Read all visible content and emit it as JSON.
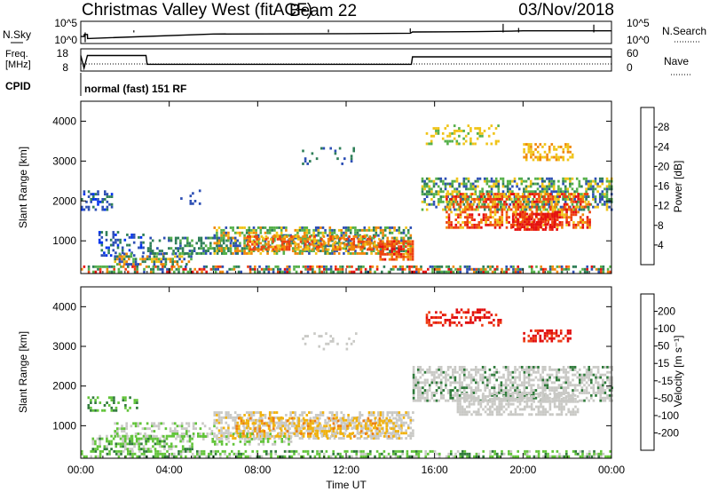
{
  "header": {
    "title": "Christmas Valley West (fitACF)",
    "beam": "Beam 22",
    "date": "03/Nov/2018"
  },
  "strip": {
    "nsky_label": "N.Sky",
    "nsky_ticks": [
      "10^5",
      "10^0"
    ],
    "nsearch_label": "N.Search",
    "nsearch_ticks": [
      "10^5",
      "10^0"
    ],
    "freq_label_1": "Freq.",
    "freq_label_2": "[MHz]",
    "freq_ticks": [
      "18",
      "8"
    ],
    "nave_label": "Nave",
    "nave_ticks": [
      "60",
      "0"
    ],
    "cpid_label": "CPID",
    "cpid_text": "normal (fast) 151 RF"
  },
  "colorbars": {
    "power": {
      "label": "Power [dB]",
      "ticks": [
        "28",
        "24",
        "20",
        "16",
        "12",
        "8",
        "4"
      ],
      "colors": [
        "#0033ee",
        "#2d4fb4",
        "#2f7f58",
        "#55b04a",
        "#f0c419",
        "#f0880a",
        "#ee4211",
        "#e51010"
      ]
    },
    "velocity": {
      "label": "Velocity [m s⁻¹]",
      "ticks": [
        "200",
        "100",
        "50",
        "15",
        "-15",
        "-50",
        "-100",
        "-200"
      ],
      "colors": [
        "#2030c0",
        "#3565b0",
        "#2f7a3a",
        "#62c43a",
        "#c9c9c5",
        "#f1b20f",
        "#ee7d10",
        "#ee3b12",
        "#e10d0d"
      ]
    }
  },
  "chart_data": [
    {
      "type": "line",
      "title": "N.Sky / N.Search",
      "x_range_hours": [
        0,
        24
      ],
      "scale": "log",
      "series": [
        {
          "name": "N.Sky",
          "x": [
            0,
            0.15,
            0.16,
            0.3,
            0.31,
            6,
            12,
            14.9,
            15.0,
            18,
            19.5,
            20,
            23,
            24
          ],
          "y": [
            1.5,
            1.5,
            2,
            2,
            1,
            2.1,
            2.2,
            2.3,
            2.6,
            2.7,
            2.8,
            2.9,
            2.9,
            2.9
          ]
        }
      ]
    },
    {
      "type": "line",
      "title": "Freq. / Nave",
      "x_range_hours": [
        0,
        24
      ],
      "series": [
        {
          "name": "Freq.",
          "x": [
            0,
            0.15,
            0.3,
            2.95,
            3.0,
            14.95,
            15.0,
            24
          ],
          "y": [
            15.5,
            9,
            15.5,
            15.5,
            11,
            11,
            14.8,
            14.8
          ]
        },
        {
          "name": "Nave",
          "x": [
            0,
            24
          ],
          "y": [
            19,
            19
          ]
        }
      ],
      "ylim_freq": [
        8,
        18
      ],
      "ylim_nave": [
        0,
        60
      ]
    },
    {
      "type": "heatmap",
      "title": "Power",
      "xlabel": "",
      "ylabel": "Slant Range [km]",
      "xlim_hours": [
        0,
        24
      ],
      "ylim_km": [
        180,
        4500
      ],
      "x_ticks": [
        "00:00",
        "04:00",
        "08:00",
        "12:00",
        "16:00",
        "20:00",
        "00:00"
      ],
      "y_ticks": [
        1000,
        2000,
        3000,
        4000
      ],
      "zlim_db": [
        0,
        32
      ],
      "regions": [
        {
          "t0": 0.0,
          "t1": 24.0,
          "r0": 190,
          "r1": 330,
          "dens": 0.55,
          "pal": [
            1,
            2,
            2,
            3,
            3,
            5,
            6,
            7
          ]
        },
        {
          "t0": 0.0,
          "t1": 1.4,
          "r0": 1750,
          "r1": 2250,
          "dens": 0.4,
          "pal": [
            0,
            1,
            1,
            2
          ]
        },
        {
          "t0": 0.8,
          "t1": 2.8,
          "r0": 600,
          "r1": 1200,
          "dens": 0.35,
          "pal": [
            0,
            1,
            1,
            2
          ]
        },
        {
          "t0": 1.5,
          "t1": 5.0,
          "r0": 380,
          "r1": 700,
          "dens": 0.55,
          "pal": [
            1,
            2,
            3,
            4,
            5
          ]
        },
        {
          "t0": 3.0,
          "t1": 7.0,
          "r0": 650,
          "r1": 1050,
          "dens": 0.45,
          "pal": [
            1,
            2,
            2,
            3
          ]
        },
        {
          "t0": 6.0,
          "t1": 14.9,
          "r0": 650,
          "r1": 1350,
          "dens": 0.6,
          "pal": [
            1,
            2,
            3,
            3,
            4,
            5
          ]
        },
        {
          "t0": 7.5,
          "t1": 13.5,
          "r0": 750,
          "r1": 1100,
          "dens": 0.55,
          "pal": [
            4,
            5,
            6,
            5,
            6
          ]
        },
        {
          "t0": 13.5,
          "t1": 15.0,
          "r0": 500,
          "r1": 1000,
          "dens": 0.7,
          "pal": [
            5,
            6,
            7,
            6
          ]
        },
        {
          "t0": 15.4,
          "t1": 24.0,
          "r0": 1750,
          "r1": 2550,
          "dens": 0.55,
          "pal": [
            1,
            2,
            3,
            3,
            4
          ]
        },
        {
          "t0": 16.5,
          "t1": 23.0,
          "r0": 1300,
          "r1": 2200,
          "dens": 0.55,
          "pal": [
            4,
            5,
            6,
            7,
            6
          ]
        },
        {
          "t0": 19.5,
          "t1": 21.5,
          "r0": 1250,
          "r1": 1650,
          "dens": 0.75,
          "pal": [
            6,
            7,
            7
          ]
        },
        {
          "t0": 15.6,
          "t1": 19.0,
          "r0": 3400,
          "r1": 3900,
          "dens": 0.3,
          "pal": [
            3,
            4,
            4
          ]
        },
        {
          "t0": 20.0,
          "t1": 22.2,
          "r0": 3000,
          "r1": 3400,
          "dens": 0.5,
          "pal": [
            4,
            5,
            4
          ]
        },
        {
          "t0": 10.0,
          "t1": 12.5,
          "r0": 2900,
          "r1": 3300,
          "dens": 0.08,
          "pal": [
            1,
            2
          ]
        },
        {
          "t0": 4.5,
          "t1": 5.5,
          "r0": 1900,
          "r1": 2300,
          "dens": 0.05,
          "pal": [
            1
          ]
        }
      ]
    },
    {
      "type": "heatmap",
      "title": "Velocity",
      "xlabel": "Time UT",
      "ylabel": "Slant Range [km]",
      "xlim_hours": [
        0,
        24
      ],
      "ylim_km": [
        180,
        4500
      ],
      "x_ticks": [
        "00:00",
        "04:00",
        "08:00",
        "12:00",
        "16:00",
        "20:00",
        "00:00"
      ],
      "y_ticks": [
        1000,
        2000,
        3000,
        4000
      ],
      "zlim_ms": [
        -200,
        200
      ],
      "regions": [
        {
          "t0": 0.0,
          "t1": 24.0,
          "r0": 190,
          "r1": 330,
          "dens": 0.55,
          "pal": [
            3,
            3,
            2,
            4
          ]
        },
        {
          "t0": 0.3,
          "t1": 2.5,
          "r0": 1350,
          "r1": 1700,
          "dens": 0.35,
          "pal": [
            3,
            3,
            2
          ]
        },
        {
          "t0": 0.5,
          "t1": 5.0,
          "r0": 380,
          "r1": 750,
          "dens": 0.5,
          "pal": [
            3,
            3,
            4,
            2
          ]
        },
        {
          "t0": 1.5,
          "t1": 6.0,
          "r0": 700,
          "r1": 1050,
          "dens": 0.45,
          "pal": [
            4,
            3,
            4
          ]
        },
        {
          "t0": 6.0,
          "t1": 15.0,
          "r0": 650,
          "r1": 1350,
          "dens": 0.55,
          "pal": [
            4,
            4,
            4,
            5
          ]
        },
        {
          "t0": 7.0,
          "t1": 14.5,
          "r0": 700,
          "r1": 1200,
          "dens": 0.5,
          "pal": [
            5,
            5,
            6,
            4
          ]
        },
        {
          "t0": 5.5,
          "t1": 9.5,
          "r0": 500,
          "r1": 800,
          "dens": 0.3,
          "pal": [
            3,
            3,
            4
          ]
        },
        {
          "t0": 15.0,
          "t1": 24.0,
          "r0": 1600,
          "r1": 2500,
          "dens": 0.6,
          "pal": [
            4,
            4,
            4,
            4,
            2
          ]
        },
        {
          "t0": 17.0,
          "t1": 22.5,
          "r0": 1250,
          "r1": 1800,
          "dens": 0.55,
          "pal": [
            4,
            4,
            4
          ]
        },
        {
          "t0": 15.6,
          "t1": 19.0,
          "r0": 3500,
          "r1": 3900,
          "dens": 0.35,
          "pal": [
            8,
            7,
            8
          ]
        },
        {
          "t0": 20.0,
          "t1": 22.2,
          "r0": 3100,
          "r1": 3400,
          "dens": 0.5,
          "pal": [
            8,
            7,
            8
          ]
        },
        {
          "t0": 10.0,
          "t1": 12.5,
          "r0": 2900,
          "r1": 3300,
          "dens": 0.08,
          "pal": [
            4
          ]
        }
      ]
    }
  ]
}
